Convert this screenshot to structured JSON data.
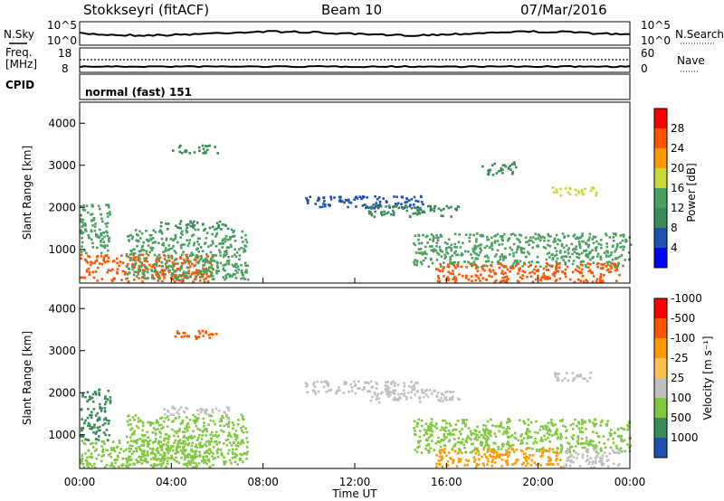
{
  "header": {
    "title": "Stokkseyri (fitACF)",
    "beam": "Beam 10",
    "date": "07/Mar/2016"
  },
  "panels": {
    "nsky": {
      "label": "N.Sky",
      "ticks": [
        "10^5",
        "10^0"
      ],
      "right_ticks": [
        "10^5",
        "10^0"
      ],
      "right_label": "N.Search",
      "right_label_style": "dotted"
    },
    "freq": {
      "label_line1": "Freq.",
      "label_line2": "[MHz]",
      "ticks": [
        "18",
        "8"
      ],
      "right_ticks": [
        "60",
        "0"
      ],
      "right_label": "Nave",
      "right_label_style": "dotted"
    },
    "cpid": {
      "label": "CPID",
      "mode": "normal (fast) 151"
    }
  },
  "colors": {
    "power_scale": [
      "#0000ff",
      "#2050b0",
      "#3a8a5a",
      "#4aa060",
      "#c8d838",
      "#ff9900",
      "#ff5500",
      "#ff0000"
    ],
    "velocity_scale": [
      "#ff0000",
      "#ff5500",
      "#ff9900",
      "#ffc050",
      "#c0c0c0",
      "#80c840",
      "#3a8a5a",
      "#2050b0"
    ],
    "ground_scatter": "#c0c0c0"
  },
  "chart_data": [
    {
      "type": "heatmap",
      "name": "power",
      "ylabel": "Slant Range [km]",
      "yticks": [
        "1000",
        "2000",
        "3000",
        "4000"
      ],
      "ylim": [
        200,
        4500
      ],
      "colorbar_label": "Power [dB]",
      "colorbar_ticks": [
        "4",
        "8",
        "12",
        "16",
        "20",
        "24",
        "28"
      ],
      "colorbar_range": [
        0,
        32
      ],
      "regions": [
        {
          "t0": 0.0,
          "t1": 5.8,
          "r0": 250,
          "r1": 900,
          "level": 27
        },
        {
          "t0": 0.0,
          "t1": 1.3,
          "r0": 900,
          "r1": 2100,
          "level": 14
        },
        {
          "t0": 2.0,
          "t1": 7.3,
          "r0": 300,
          "r1": 1500,
          "level": 12
        },
        {
          "t0": 3.5,
          "t1": 6.5,
          "r0": 1500,
          "r1": 1700,
          "level": 11
        },
        {
          "t0": 4.0,
          "t1": 6.0,
          "r0": 3300,
          "r1": 3500,
          "level": 9
        },
        {
          "t0": 9.8,
          "t1": 15.0,
          "r0": 2000,
          "r1": 2300,
          "level": 7
        },
        {
          "t0": 12.5,
          "t1": 16.5,
          "r0": 1800,
          "r1": 2100,
          "level": 8
        },
        {
          "t0": 14.5,
          "t1": 24.0,
          "r0": 600,
          "r1": 1400,
          "level": 13
        },
        {
          "t0": 15.5,
          "t1": 23.5,
          "r0": 250,
          "r1": 700,
          "level": 26
        },
        {
          "t0": 20.5,
          "t1": 22.5,
          "r0": 2300,
          "r1": 2500,
          "level": 18
        },
        {
          "t0": 17.5,
          "t1": 19.0,
          "r0": 2800,
          "r1": 3100,
          "level": 10
        }
      ]
    },
    {
      "type": "heatmap",
      "name": "velocity",
      "ylabel": "Slant Range [km]",
      "yticks": [
        "1000",
        "2000",
        "3000",
        "4000"
      ],
      "ylim": [
        200,
        4500
      ],
      "xlabel": "Time UT",
      "xticks": [
        "00:00",
        "04:00",
        "08:00",
        "12:00",
        "16:00",
        "20:00",
        "00:00"
      ],
      "xlim": [
        0,
        24
      ],
      "colorbar_label": "Velocity [m s⁻¹]",
      "colorbar_ticks": [
        "-1000",
        "-500",
        "-100",
        "-25",
        "25",
        "100",
        "500",
        "1000"
      ],
      "regions": [
        {
          "t0": 0.0,
          "t1": 5.8,
          "r0": 250,
          "r1": 900,
          "level": "100"
        },
        {
          "t0": 0.0,
          "t1": 1.3,
          "r0": 900,
          "r1": 2100,
          "level": "500"
        },
        {
          "t0": 2.0,
          "t1": 7.3,
          "r0": 300,
          "r1": 1500,
          "level": "100"
        },
        {
          "t0": 3.5,
          "t1": 6.5,
          "r0": 1500,
          "r1": 1700,
          "level": "gs"
        },
        {
          "t0": 4.0,
          "t1": 6.0,
          "r0": 3300,
          "r1": 3500,
          "level": "-500"
        },
        {
          "t0": 9.8,
          "t1": 15.0,
          "r0": 2000,
          "r1": 2300,
          "level": "gs"
        },
        {
          "t0": 12.5,
          "t1": 16.5,
          "r0": 1800,
          "r1": 2100,
          "level": "gs"
        },
        {
          "t0": 14.5,
          "t1": 24.0,
          "r0": 600,
          "r1": 1400,
          "level": "100"
        },
        {
          "t0": 15.5,
          "t1": 21.0,
          "r0": 250,
          "r1": 700,
          "level": "-100"
        },
        {
          "t0": 21.0,
          "t1": 23.5,
          "r0": 250,
          "r1": 700,
          "level": "gs"
        },
        {
          "t0": 20.5,
          "t1": 22.5,
          "r0": 2300,
          "r1": 2500,
          "level": "gs"
        }
      ]
    }
  ]
}
